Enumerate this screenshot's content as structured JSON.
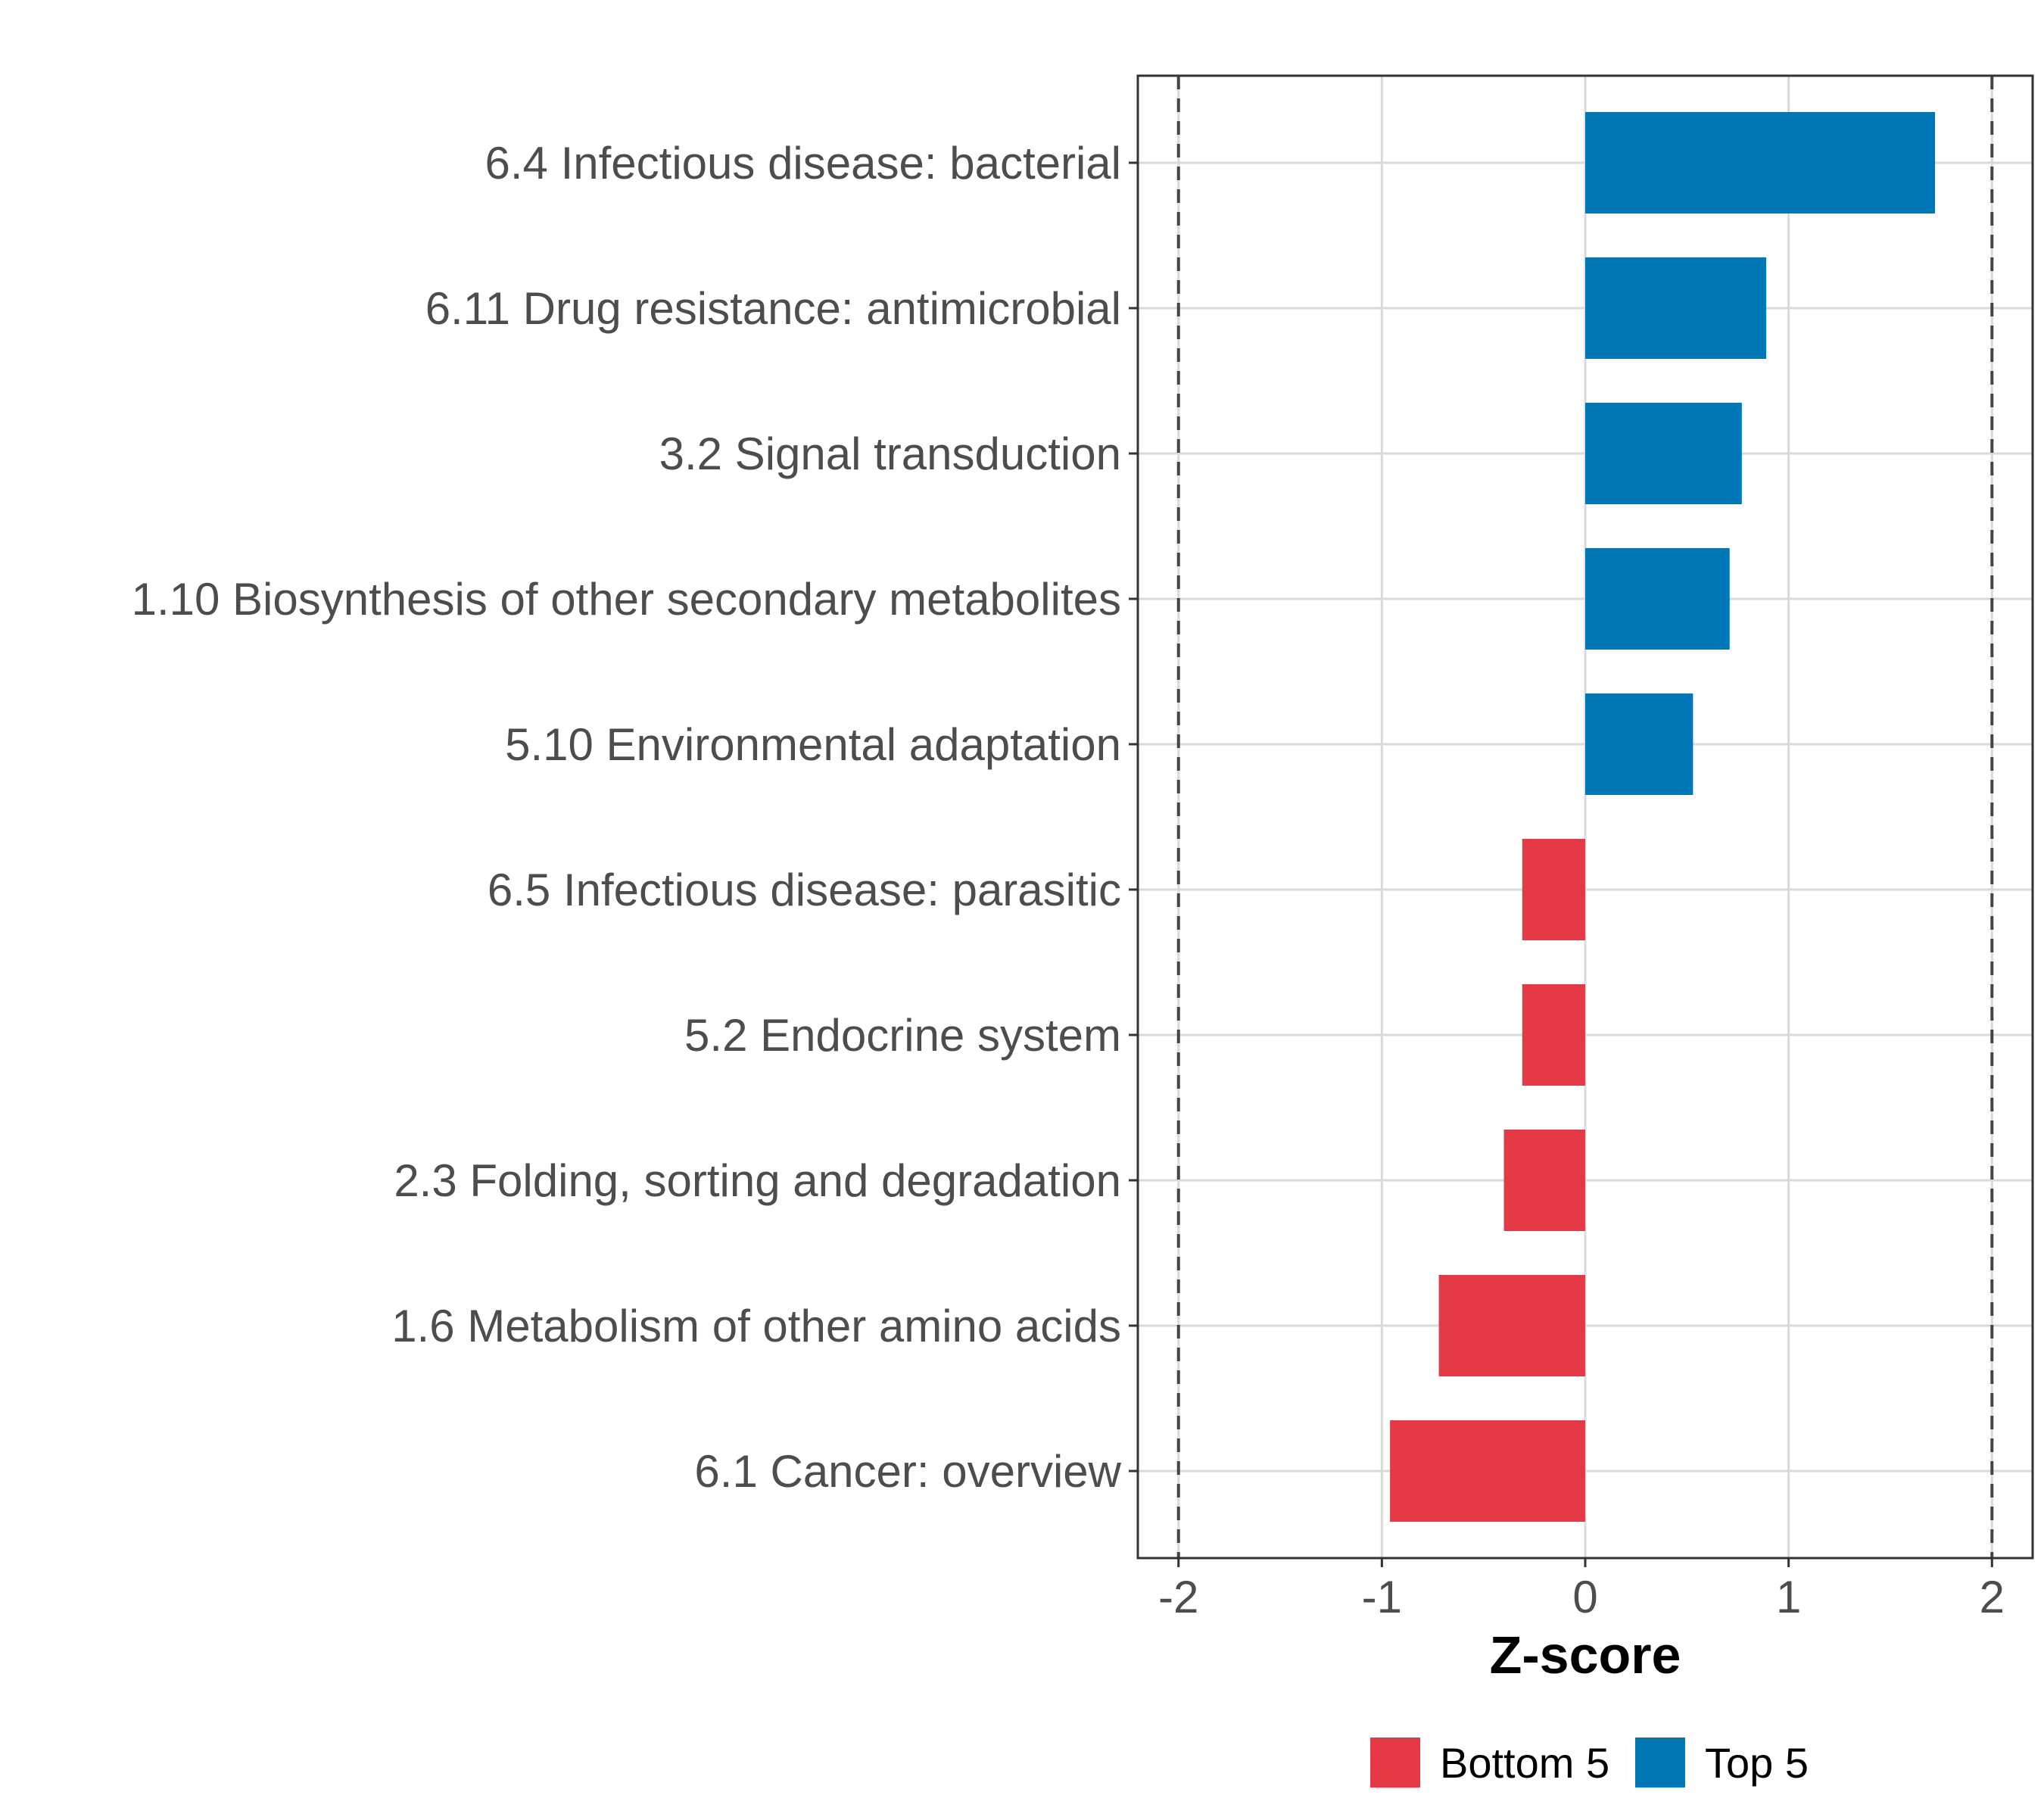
{
  "chart_data": {
    "type": "bar",
    "orientation": "horizontal",
    "title": "",
    "xlabel": "Z-score",
    "ylabel": "",
    "xlim": [
      -2.2,
      2.2
    ],
    "xticks": [
      "-2",
      "-1",
      "0",
      "1",
      "2"
    ],
    "xtick_values": [
      -2,
      -1,
      0,
      1,
      2
    ],
    "reference_lines": [
      -2,
      2
    ],
    "grid": true,
    "legend_position": "bottom",
    "categories": [
      "6.4 Infectious disease: bacterial",
      "6.11 Drug resistance: antimicrobial",
      "3.2 Signal transduction",
      "1.10 Biosynthesis of other secondary metabolites",
      "5.10 Environmental adaptation",
      "6.5 Infectious disease: parasitic",
      "5.2 Endocrine system",
      "2.3 Folding, sorting and degradation",
      "1.6 Metabolism of other amino acids",
      "6.1 Cancer: overview"
    ],
    "values": [
      1.72,
      0.89,
      0.77,
      0.71,
      0.53,
      -0.31,
      -0.31,
      -0.4,
      -0.72,
      -0.96
    ],
    "groups": [
      "Top 5",
      "Top 5",
      "Top 5",
      "Top 5",
      "Top 5",
      "Bottom 5",
      "Bottom 5",
      "Bottom 5",
      "Bottom 5",
      "Bottom 5"
    ],
    "legend": [
      {
        "name": "Bottom 5",
        "color": "#e63946"
      },
      {
        "name": "Top 5",
        "color": "#0077b6"
      }
    ]
  }
}
